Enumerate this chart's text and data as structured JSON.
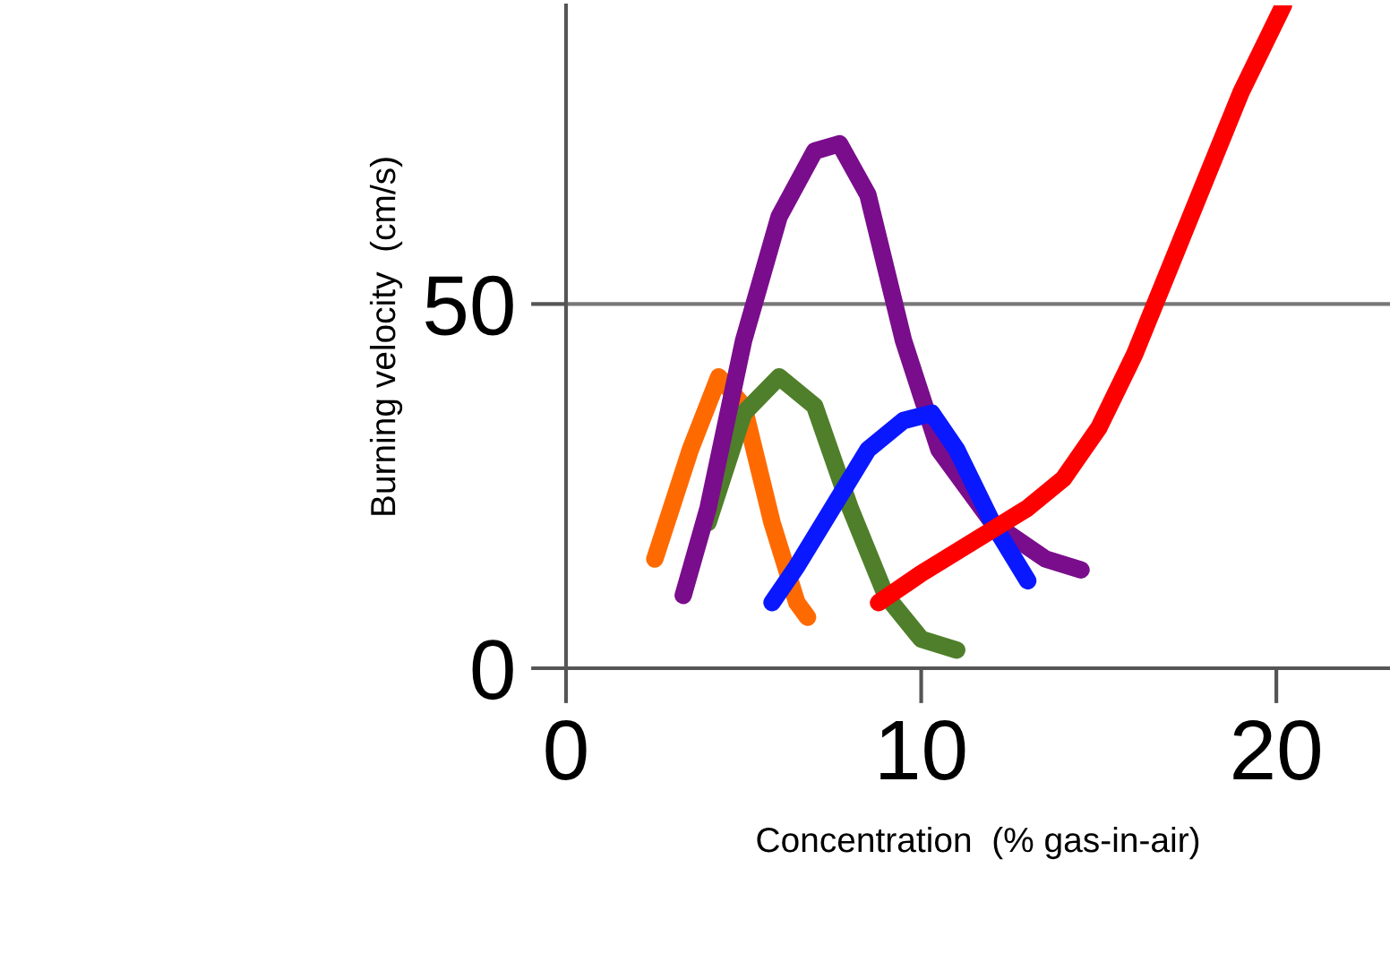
{
  "chart_data": {
    "type": "line",
    "xlabel": "Concentration  (% gas-in-air)",
    "ylabel": "Burning velocity  (cm/s)",
    "xlim": [
      0,
      23.2
    ],
    "ylim": [
      0,
      91
    ],
    "xticks": [
      0,
      10,
      20
    ],
    "yticks": [
      0,
      50
    ],
    "grid": "y",
    "line_style": "solid",
    "marker": "none",
    "series": [
      {
        "color": "#ff6a00",
        "x": [
          2.5,
          3.5,
          4.3,
          5,
          5.8,
          6.5,
          6.8
        ],
        "values": [
          15,
          30,
          40,
          36,
          20,
          9,
          7
        ]
      },
      {
        "color": "#4f7f2a",
        "x": [
          4,
          5,
          6,
          7,
          8,
          9,
          10,
          11
        ],
        "values": [
          20,
          35,
          40,
          36,
          22,
          10,
          4,
          2.5
        ]
      },
      {
        "color": "#7a0d8c",
        "x": [
          3.3,
          4,
          5,
          6,
          7,
          7.7,
          8.5,
          9.5,
          10.5,
          12,
          13.5,
          14.5
        ],
        "values": [
          10,
          22,
          45,
          62,
          71,
          72,
          65,
          45,
          30,
          20,
          15,
          13.5
        ]
      },
      {
        "color": "#0a18ff",
        "x": [
          5.8,
          6.5,
          7.5,
          8.5,
          9.5,
          10.3,
          11,
          12,
          13
        ],
        "values": [
          9,
          14,
          22,
          30,
          34,
          35,
          30,
          20,
          12
        ]
      },
      {
        "color": "#ff0000",
        "x": [
          8.8,
          10,
          12,
          13,
          14,
          15,
          16,
          17,
          18,
          19,
          20.2
        ],
        "values": [
          9,
          13,
          19,
          22,
          26,
          33,
          43,
          55,
          67,
          79,
          91
        ]
      }
    ]
  }
}
